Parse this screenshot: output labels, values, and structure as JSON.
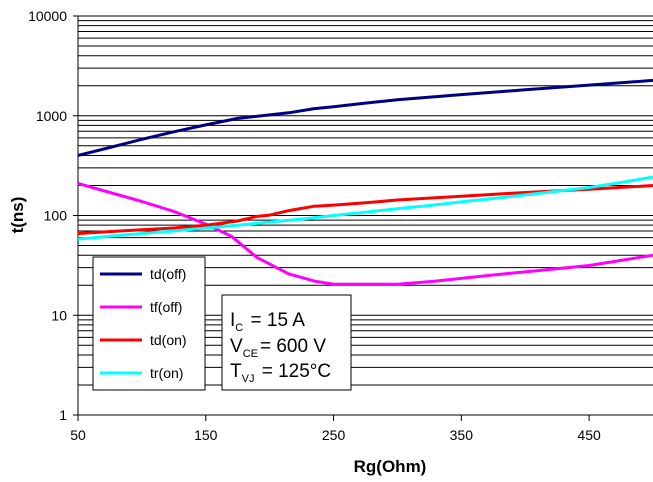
{
  "chart_data": {
    "type": "line",
    "xlabel": "Rg(Ohm)",
    "ylabel": "t(ns)",
    "xlim": [
      50,
      500
    ],
    "ylim": [
      1,
      10000
    ],
    "yscale": "log",
    "grid": "horizontal minor and major lines",
    "x_tick_labels": [
      "50",
      "150",
      "250",
      "350",
      "450"
    ],
    "x_ticks": [
      50,
      150,
      250,
      350,
      450
    ],
    "y_tick_labels": [
      "1",
      "10",
      "100",
      "1000",
      "10000"
    ],
    "y_ticks": [
      1,
      10,
      100,
      1000,
      10000
    ],
    "legend_position": "lower-left",
    "series": [
      {
        "name": "td(off)",
        "color": "#000080",
        "x": [
          50,
          75,
          100,
          125,
          150,
          175,
          200,
          215,
          235,
          250,
          275,
          300,
          350,
          400,
          450,
          500
        ],
        "y": [
          400,
          480,
          580,
          690,
          810,
          940,
          1020,
          1070,
          1180,
          1230,
          1340,
          1450,
          1630,
          1820,
          2030,
          2260
        ]
      },
      {
        "name": "tf(off)",
        "color": "#ff00ff",
        "x": [
          50,
          75,
          100,
          125,
          150,
          170,
          190,
          215,
          235,
          250,
          275,
          300,
          330,
          370,
          410,
          450,
          475,
          500
        ],
        "y": [
          210,
          170,
          138,
          110,
          82,
          62,
          38,
          26,
          22,
          20.5,
          20.5,
          20.5,
          22,
          25,
          28,
          31.5,
          35.5,
          40
        ]
      },
      {
        "name": "td(on)",
        "color": "#ff0000",
        "x": [
          50,
          75,
          100,
          125,
          150,
          175,
          190,
          200,
          215,
          235,
          250,
          275,
          300,
          350,
          400,
          450,
          500
        ],
        "y": [
          66,
          69,
          72,
          75,
          80,
          88,
          98,
          101,
          112,
          124,
          127,
          134,
          143,
          156,
          170,
          183,
          200
        ]
      },
      {
        "name": "tr(on)",
        "color": "#00ffff",
        "x": [
          50,
          75,
          100,
          125,
          150,
          175,
          200,
          225,
          250,
          275,
          300,
          325,
          350,
          375,
          400,
          425,
          450,
          475,
          500
        ],
        "y": [
          58,
          62,
          66,
          70,
          75,
          80,
          86,
          92,
          100,
          108,
          117,
          126,
          137,
          148,
          161,
          175,
          191,
          214,
          243
        ]
      }
    ],
    "annotation": {
      "line1_main": "I",
      "line1_sub": "C",
      "line1_rest": " = 15 A",
      "line2_main": "V",
      "line2_sub": "CE",
      "line2_rest": "= 600 V",
      "line3_main": "T",
      "line3_sub": "VJ",
      "line3_rest": " = 125°C"
    }
  }
}
